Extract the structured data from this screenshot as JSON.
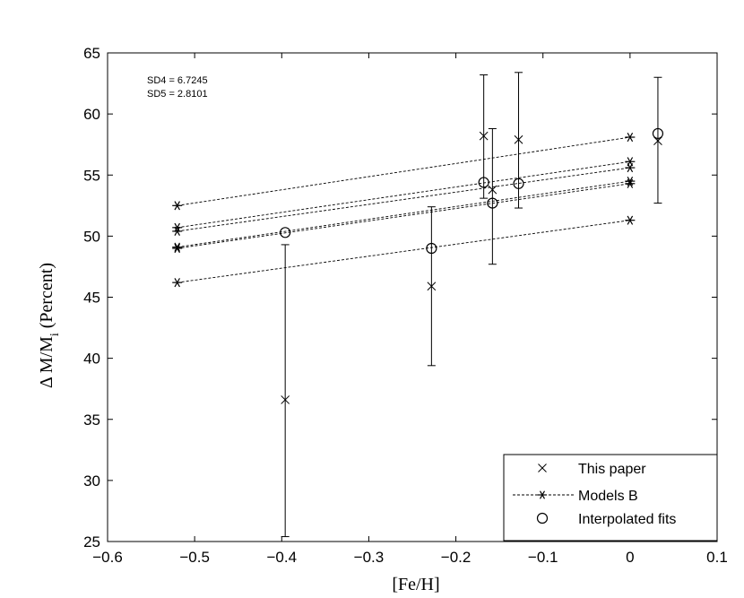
{
  "chart_data": {
    "type": "scatter",
    "title": "",
    "xlabel": "[Fe/H]",
    "ylabel": "Δ M/M",
    "ylabel_sub": "i",
    "ylabel_suffix": " (Percent)",
    "xlim": [
      -0.6,
      0.1
    ],
    "ylim": [
      25,
      65
    ],
    "xticks": [
      -0.6,
      -0.5,
      -0.4,
      -0.3,
      -0.2,
      -0.1,
      0,
      0.1
    ],
    "xtick_labels": [
      "−0.6",
      "−0.5",
      "−0.4",
      "−0.3",
      "−0.2",
      "−0.1",
      "0",
      "0.1"
    ],
    "yticks": [
      25,
      30,
      35,
      40,
      45,
      50,
      55,
      60,
      65
    ],
    "ytick_labels": [
      "25",
      "30",
      "35",
      "40",
      "45",
      "50",
      "55",
      "60",
      "65"
    ],
    "grid": false,
    "legend_position": "bottom-right",
    "annotations": [
      "SD4 = 6.7245",
      "SD5 = 2.8101"
    ],
    "series": [
      {
        "name": "This paper",
        "marker": "x",
        "points": [
          {
            "x": -0.396,
            "y": 36.6,
            "err_low": 25.4,
            "err_high": 49.3
          },
          {
            "x": -0.228,
            "y": 45.9,
            "err_low": 39.4,
            "err_high": 52.4
          },
          {
            "x": -0.168,
            "y": 58.2,
            "err_low": 53.1,
            "err_high": 63.2
          },
          {
            "x": -0.158,
            "y": 53.8,
            "err_low": 47.7,
            "err_high": 58.8
          },
          {
            "x": -0.128,
            "y": 57.9,
            "err_low": 52.3,
            "err_high": 63.4
          },
          {
            "x": 0.032,
            "y": 57.8,
            "err_low": 52.7,
            "err_high": 63.0
          }
        ]
      },
      {
        "name": "Models B",
        "marker": "asterisk",
        "line": "dashed",
        "lines": [
          {
            "x": [
              -0.52,
              0
            ],
            "y": [
              52.5,
              58.1
            ]
          },
          {
            "x": [
              -0.52,
              0
            ],
            "y": [
              50.7,
              56.1
            ]
          },
          {
            "x": [
              -0.52,
              0
            ],
            "y": [
              50.4,
              55.6
            ]
          },
          {
            "x": [
              -0.52,
              0
            ],
            "y": [
              49.1,
              54.5
            ]
          },
          {
            "x": [
              -0.52,
              0
            ],
            "y": [
              49.0,
              54.3
            ]
          },
          {
            "x": [
              -0.52,
              0
            ],
            "y": [
              46.2,
              51.3
            ]
          }
        ]
      },
      {
        "name": "Interpolated fits",
        "marker": "circle",
        "points": [
          {
            "x": -0.396,
            "y": 50.3
          },
          {
            "x": -0.228,
            "y": 49.0
          },
          {
            "x": -0.168,
            "y": 54.4
          },
          {
            "x": -0.158,
            "y": 52.7
          },
          {
            "x": -0.128,
            "y": 54.3
          },
          {
            "x": 0.032,
            "y": 58.4
          }
        ]
      }
    ]
  }
}
